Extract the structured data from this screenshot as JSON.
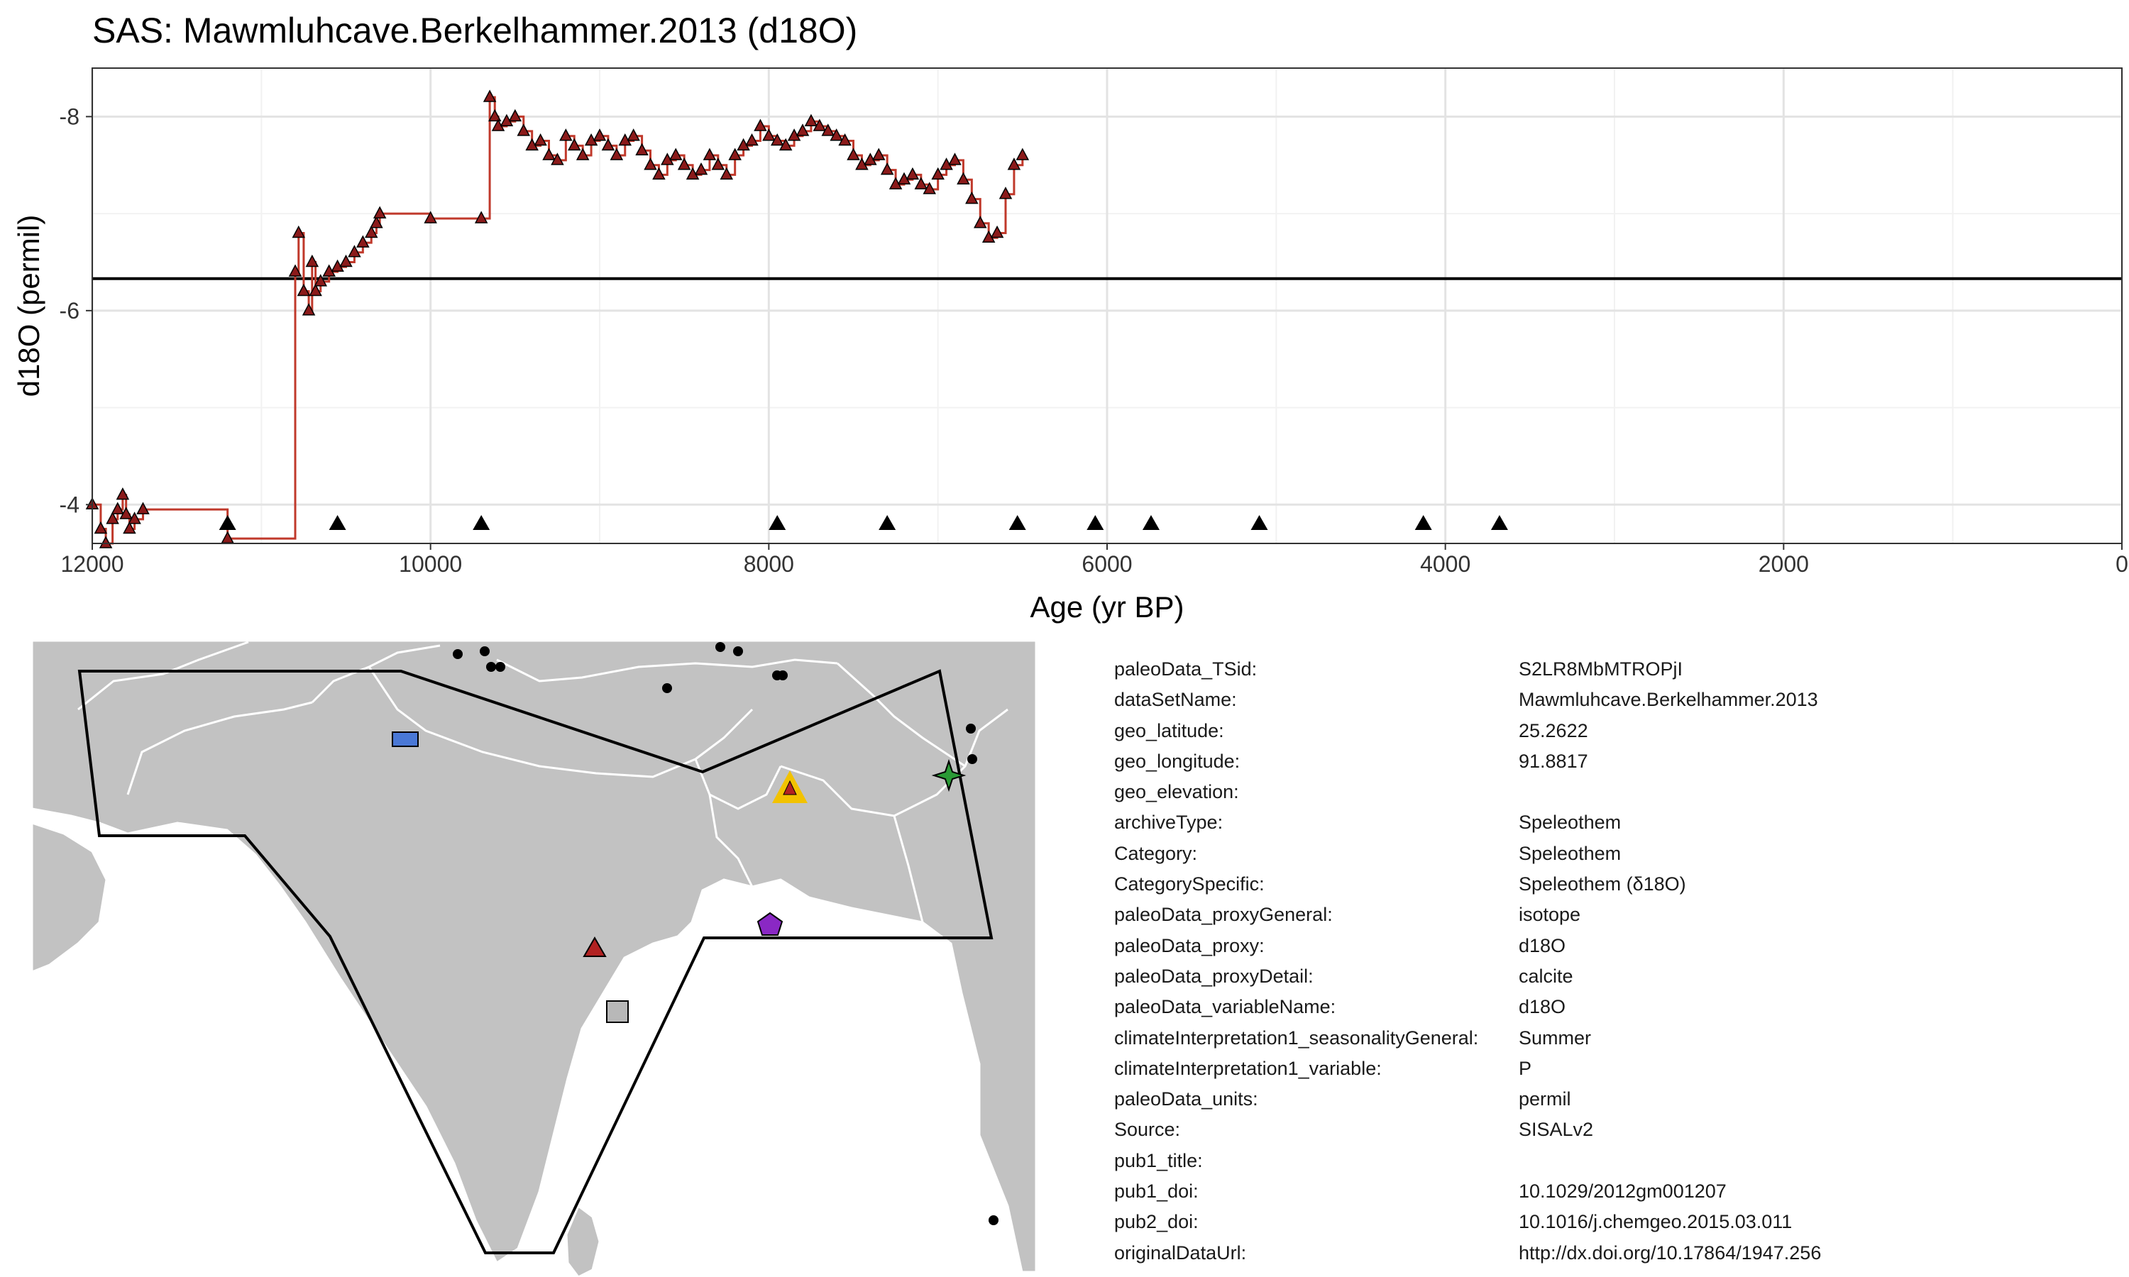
{
  "chart_data": {
    "type": "line",
    "title": "SAS: Mawmluhcave.Berkelhammer.2013 (d18O)",
    "xlabel": "Age (yr BP)",
    "ylabel": "d18O (permil)",
    "xlim": [
      12000,
      0
    ],
    "ylim": [
      -3.6,
      -8.5
    ],
    "x_reversed": true,
    "y_reversed": true,
    "x_ticks": [
      12000,
      10000,
      8000,
      6000,
      4000,
      2000,
      0
    ],
    "y_ticks": [
      -4,
      -6,
      -8
    ],
    "reference_line": -6.33,
    "grid": true,
    "series": [
      {
        "name": "d18O",
        "color": "#c0392b",
        "marker": "triangle",
        "marker_fill": "#8b1a1a",
        "x": [
          12000,
          11950,
          11920,
          11880,
          11850,
          11820,
          11800,
          11780,
          11750,
          11700,
          11200,
          10800,
          10780,
          10750,
          10720,
          10700,
          10680,
          10650,
          10600,
          10550,
          10500,
          10450,
          10400,
          10350,
          10320,
          10300,
          10000,
          9700,
          9650,
          9620,
          9600,
          9550,
          9500,
          9450,
          9400,
          9350,
          9300,
          9250,
          9200,
          9150,
          9100,
          9050,
          9000,
          8950,
          8900,
          8850,
          8800,
          8750,
          8700,
          8650,
          8600,
          8550,
          8500,
          8450,
          8400,
          8350,
          8300,
          8250,
          8200,
          8150,
          8100,
          8050,
          8000,
          7950,
          7900,
          7850,
          7800,
          7750,
          7700,
          7650,
          7600,
          7550,
          7500,
          7450,
          7400,
          7350,
          7300,
          7250,
          7200,
          7150,
          7100,
          7050,
          7000,
          6950,
          6900,
          6850,
          6800,
          6750,
          6700,
          6650,
          6600,
          6550,
          6500
        ],
        "y": [
          -4.0,
          -3.75,
          -3.6,
          -3.85,
          -3.95,
          -4.1,
          -3.9,
          -3.75,
          -3.85,
          -3.95,
          -3.65,
          -6.4,
          -6.8,
          -6.2,
          -6.0,
          -6.5,
          -6.2,
          -6.3,
          -6.4,
          -6.45,
          -6.5,
          -6.6,
          -6.7,
          -6.8,
          -6.9,
          -7.0,
          -6.95,
          -6.95,
          -8.2,
          -8.0,
          -7.9,
          -7.95,
          -8.0,
          -7.85,
          -7.7,
          -7.75,
          -7.6,
          -7.55,
          -7.8,
          -7.7,
          -7.6,
          -7.75,
          -7.8,
          -7.7,
          -7.6,
          -7.75,
          -7.8,
          -7.65,
          -7.5,
          -7.4,
          -7.55,
          -7.6,
          -7.5,
          -7.4,
          -7.45,
          -7.6,
          -7.5,
          -7.4,
          -7.6,
          -7.7,
          -7.75,
          -7.9,
          -7.8,
          -7.75,
          -7.7,
          -7.8,
          -7.85,
          -7.95,
          -7.9,
          -7.85,
          -7.8,
          -7.75,
          -7.6,
          -7.5,
          -7.55,
          -7.6,
          -7.45,
          -7.3,
          -7.35,
          -7.4,
          -7.3,
          -7.25,
          -7.4,
          -7.5,
          -7.55,
          -7.35,
          -7.15,
          -6.9,
          -6.75,
          -6.8,
          -7.2,
          -7.5,
          -7.6
        ]
      }
    ],
    "chronology_markers_x": [
      11200,
      10550,
      9700,
      7950,
      7300,
      6530,
      6070,
      5740,
      5100,
      4130,
      3680
    ]
  },
  "map": {
    "legend": [
      {
        "site": "square-blue",
        "color": "#4a78d6"
      },
      {
        "site": "triangle-red",
        "color": "#b22222"
      },
      {
        "site": "square-grey",
        "color": "#b8b8b8"
      },
      {
        "site": "pentagon-purple",
        "color": "#8a28c4"
      },
      {
        "site": "star-green",
        "color": "#2a9a35"
      },
      {
        "site": "triangle-highlight",
        "color": "#f2c200"
      }
    ]
  },
  "metadata": [
    {
      "key": "paleoData_TSid:",
      "value": "S2LR8MbMTROPjI"
    },
    {
      "key": "dataSetName:",
      "value": "Mawmluhcave.Berkelhammer.2013"
    },
    {
      "key": "geo_latitude:",
      "value": "25.2622"
    },
    {
      "key": "geo_longitude:",
      "value": "91.8817"
    },
    {
      "key": "geo_elevation:",
      "value": ""
    },
    {
      "key": "archiveType:",
      "value": "Speleothem"
    },
    {
      "key": "Category:",
      "value": "Speleothem"
    },
    {
      "key": "CategorySpecific:",
      "value": "Speleothem (δ18O)"
    },
    {
      "key": "paleoData_proxyGeneral:",
      "value": "isotope"
    },
    {
      "key": "paleoData_proxy:",
      "value": "d18O"
    },
    {
      "key": "paleoData_proxyDetail:",
      "value": "calcite"
    },
    {
      "key": "paleoData_variableName:",
      "value": "d18O"
    },
    {
      "key": "climateInterpretation1_seasonalityGeneral:",
      "value": "Summer"
    },
    {
      "key": "climateInterpretation1_variable:",
      "value": "P"
    },
    {
      "key": "paleoData_units:",
      "value": "permil"
    },
    {
      "key": "Source:",
      "value": "SISALv2"
    },
    {
      "key": "pub1_title:",
      "value": ""
    },
    {
      "key": "pub1_doi:",
      "value": "10.1029/2012gm001207"
    },
    {
      "key": "pub2_doi:",
      "value": "10.1016/j.chemgeo.2015.03.011"
    },
    {
      "key": "originalDataUrl:",
      "value": "http://dx.doi.org/10.17864/1947.256"
    }
  ]
}
